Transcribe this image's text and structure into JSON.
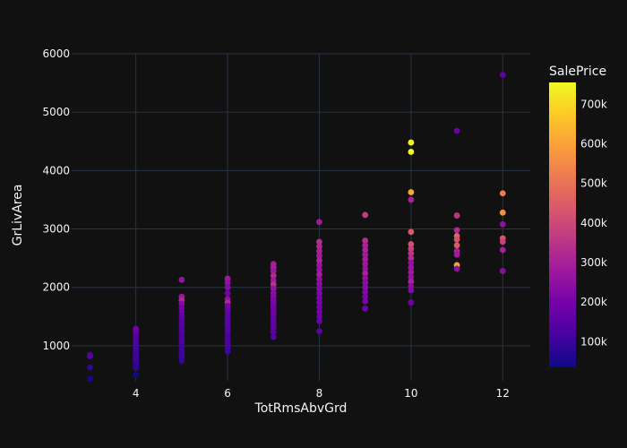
{
  "chart_data": {
    "type": "scatter",
    "title": "",
    "xlabel": "TotRmsAbvGrd",
    "ylabel": "GrLivArea",
    "xlim": [
      2.6,
      12.6
    ],
    "ylim": [
      400,
      6000
    ],
    "x_ticks": [
      4,
      6,
      8,
      10,
      12
    ],
    "x_tick_labels": [
      "4",
      "6",
      "8",
      "10",
      "12"
    ],
    "y_ticks": [
      1000,
      2000,
      3000,
      4000,
      5000,
      6000
    ],
    "y_tick_labels": [
      "1000",
      "2000",
      "3000",
      "4000",
      "5000",
      "6000"
    ],
    "grid": true,
    "colorbar": {
      "title": "SalePrice",
      "range": [
        34900,
        755000
      ],
      "ticks": [
        100000,
        200000,
        300000,
        400000,
        500000,
        600000,
        700000
      ],
      "tick_labels": [
        "100k",
        "200k",
        "300k",
        "400k",
        "500k",
        "600k",
        "700k"
      ],
      "colorscale": [
        "#0d0887",
        "#46039f",
        "#7201a8",
        "#9c179e",
        "#bd3786",
        "#d8576b",
        "#ed7953",
        "#fb9f3a",
        "#fdca26",
        "#f0f921"
      ]
    },
    "points": [
      {
        "x": 3,
        "y": 840,
        "c": 160000
      },
      {
        "x": 3,
        "y": 820,
        "c": 130000
      },
      {
        "x": 3,
        "y": 630,
        "c": 90000
      },
      {
        "x": 3,
        "y": 430,
        "c": 50000
      },
      {
        "x": 4,
        "y": 1290,
        "c": 200000
      },
      {
        "x": 4,
        "y": 1230,
        "c": 180000
      },
      {
        "x": 4,
        "y": 1180,
        "c": 150000
      },
      {
        "x": 4,
        "y": 1120,
        "c": 140000
      },
      {
        "x": 4,
        "y": 1060,
        "c": 120000
      },
      {
        "x": 4,
        "y": 1000,
        "c": 130000
      },
      {
        "x": 4,
        "y": 950,
        "c": 110000
      },
      {
        "x": 4,
        "y": 900,
        "c": 120000
      },
      {
        "x": 4,
        "y": 860,
        "c": 100000
      },
      {
        "x": 4,
        "y": 820,
        "c": 110000
      },
      {
        "x": 4,
        "y": 780,
        "c": 95000
      },
      {
        "x": 4,
        "y": 740,
        "c": 100000
      },
      {
        "x": 4,
        "y": 700,
        "c": 90000
      },
      {
        "x": 4,
        "y": 660,
        "c": 85000
      },
      {
        "x": 4,
        "y": 620,
        "c": 80000
      },
      {
        "x": 4,
        "y": 500,
        "c": 40000
      },
      {
        "x": 5,
        "y": 2130,
        "c": 260000
      },
      {
        "x": 5,
        "y": 1840,
        "c": 270000
      },
      {
        "x": 5,
        "y": 1780,
        "c": 320000
      },
      {
        "x": 5,
        "y": 1720,
        "c": 230000
      },
      {
        "x": 5,
        "y": 1650,
        "c": 200000
      },
      {
        "x": 5,
        "y": 1580,
        "c": 190000
      },
      {
        "x": 5,
        "y": 1520,
        "c": 170000
      },
      {
        "x": 5,
        "y": 1460,
        "c": 160000
      },
      {
        "x": 5,
        "y": 1400,
        "c": 150000
      },
      {
        "x": 5,
        "y": 1340,
        "c": 140000
      },
      {
        "x": 5,
        "y": 1280,
        "c": 130000
      },
      {
        "x": 5,
        "y": 1220,
        "c": 140000
      },
      {
        "x": 5,
        "y": 1160,
        "c": 120000
      },
      {
        "x": 5,
        "y": 1100,
        "c": 130000
      },
      {
        "x": 5,
        "y": 1040,
        "c": 120000
      },
      {
        "x": 5,
        "y": 980,
        "c": 110000
      },
      {
        "x": 5,
        "y": 920,
        "c": 115000
      },
      {
        "x": 5,
        "y": 860,
        "c": 100000
      },
      {
        "x": 5,
        "y": 800,
        "c": 105000
      },
      {
        "x": 5,
        "y": 740,
        "c": 90000
      },
      {
        "x": 6,
        "y": 2150,
        "c": 280000
      },
      {
        "x": 6,
        "y": 2080,
        "c": 250000
      },
      {
        "x": 6,
        "y": 2000,
        "c": 230000
      },
      {
        "x": 6,
        "y": 1900,
        "c": 200000
      },
      {
        "x": 6,
        "y": 1800,
        "c": 250000
      },
      {
        "x": 6,
        "y": 1740,
        "c": 320000
      },
      {
        "x": 6,
        "y": 1680,
        "c": 190000
      },
      {
        "x": 6,
        "y": 1620,
        "c": 180000
      },
      {
        "x": 6,
        "y": 1560,
        "c": 170000
      },
      {
        "x": 6,
        "y": 1500,
        "c": 160000
      },
      {
        "x": 6,
        "y": 1440,
        "c": 150000
      },
      {
        "x": 6,
        "y": 1380,
        "c": 160000
      },
      {
        "x": 6,
        "y": 1320,
        "c": 140000
      },
      {
        "x": 6,
        "y": 1260,
        "c": 150000
      },
      {
        "x": 6,
        "y": 1200,
        "c": 140000
      },
      {
        "x": 6,
        "y": 1140,
        "c": 110000
      },
      {
        "x": 6,
        "y": 1080,
        "c": 130000
      },
      {
        "x": 6,
        "y": 1020,
        "c": 120000
      },
      {
        "x": 6,
        "y": 960,
        "c": 115000
      },
      {
        "x": 6,
        "y": 900,
        "c": 105000
      },
      {
        "x": 7,
        "y": 2400,
        "c": 290000
      },
      {
        "x": 7,
        "y": 2340,
        "c": 300000
      },
      {
        "x": 7,
        "y": 2280,
        "c": 270000
      },
      {
        "x": 7,
        "y": 2200,
        "c": 320000
      },
      {
        "x": 7,
        "y": 2120,
        "c": 280000
      },
      {
        "x": 7,
        "y": 2050,
        "c": 340000
      },
      {
        "x": 7,
        "y": 1980,
        "c": 260000
      },
      {
        "x": 7,
        "y": 1900,
        "c": 240000
      },
      {
        "x": 7,
        "y": 1840,
        "c": 230000
      },
      {
        "x": 7,
        "y": 1780,
        "c": 220000
      },
      {
        "x": 7,
        "y": 1720,
        "c": 210000
      },
      {
        "x": 7,
        "y": 1660,
        "c": 200000
      },
      {
        "x": 7,
        "y": 1600,
        "c": 190000
      },
      {
        "x": 7,
        "y": 1540,
        "c": 185000
      },
      {
        "x": 7,
        "y": 1480,
        "c": 180000
      },
      {
        "x": 7,
        "y": 1420,
        "c": 170000
      },
      {
        "x": 7,
        "y": 1360,
        "c": 165000
      },
      {
        "x": 7,
        "y": 1300,
        "c": 160000
      },
      {
        "x": 7,
        "y": 1240,
        "c": 150000
      },
      {
        "x": 7,
        "y": 1150,
        "c": 140000
      },
      {
        "x": 8,
        "y": 3120,
        "c": 280000
      },
      {
        "x": 8,
        "y": 2780,
        "c": 330000
      },
      {
        "x": 8,
        "y": 2700,
        "c": 320000
      },
      {
        "x": 8,
        "y": 2620,
        "c": 300000
      },
      {
        "x": 8,
        "y": 2540,
        "c": 290000
      },
      {
        "x": 8,
        "y": 2460,
        "c": 310000
      },
      {
        "x": 8,
        "y": 2380,
        "c": 270000
      },
      {
        "x": 8,
        "y": 2300,
        "c": 260000
      },
      {
        "x": 8,
        "y": 2220,
        "c": 300000
      },
      {
        "x": 8,
        "y": 2140,
        "c": 250000
      },
      {
        "x": 8,
        "y": 2060,
        "c": 240000
      },
      {
        "x": 8,
        "y": 1980,
        "c": 230000
      },
      {
        "x": 8,
        "y": 1900,
        "c": 220000
      },
      {
        "x": 8,
        "y": 1820,
        "c": 210000
      },
      {
        "x": 8,
        "y": 1740,
        "c": 200000
      },
      {
        "x": 8,
        "y": 1660,
        "c": 195000
      },
      {
        "x": 8,
        "y": 1580,
        "c": 190000
      },
      {
        "x": 8,
        "y": 1500,
        "c": 180000
      },
      {
        "x": 8,
        "y": 1420,
        "c": 170000
      },
      {
        "x": 8,
        "y": 1250,
        "c": 150000
      },
      {
        "x": 9,
        "y": 3240,
        "c": 370000
      },
      {
        "x": 9,
        "y": 2800,
        "c": 330000
      },
      {
        "x": 9,
        "y": 2720,
        "c": 300000
      },
      {
        "x": 9,
        "y": 2640,
        "c": 310000
      },
      {
        "x": 9,
        "y": 2560,
        "c": 280000
      },
      {
        "x": 9,
        "y": 2480,
        "c": 290000
      },
      {
        "x": 9,
        "y": 2400,
        "c": 270000
      },
      {
        "x": 9,
        "y": 2320,
        "c": 260000
      },
      {
        "x": 9,
        "y": 2240,
        "c": 300000
      },
      {
        "x": 9,
        "y": 2160,
        "c": 250000
      },
      {
        "x": 9,
        "y": 2080,
        "c": 240000
      },
      {
        "x": 9,
        "y": 2000,
        "c": 230000
      },
      {
        "x": 9,
        "y": 1920,
        "c": 220000
      },
      {
        "x": 9,
        "y": 1840,
        "c": 210000
      },
      {
        "x": 9,
        "y": 1760,
        "c": 200000
      },
      {
        "x": 9,
        "y": 1640,
        "c": 190000
      },
      {
        "x": 10,
        "y": 4480,
        "c": 745000
      },
      {
        "x": 10,
        "y": 4320,
        "c": 755000
      },
      {
        "x": 10,
        "y": 3630,
        "c": 610000
      },
      {
        "x": 10,
        "y": 3500,
        "c": 300000
      },
      {
        "x": 10,
        "y": 2950,
        "c": 440000
      },
      {
        "x": 10,
        "y": 2740,
        "c": 420000
      },
      {
        "x": 10,
        "y": 2660,
        "c": 380000
      },
      {
        "x": 10,
        "y": 2580,
        "c": 350000
      },
      {
        "x": 10,
        "y": 2500,
        "c": 330000
      },
      {
        "x": 10,
        "y": 2420,
        "c": 250000
      },
      {
        "x": 10,
        "y": 2340,
        "c": 270000
      },
      {
        "x": 10,
        "y": 2260,
        "c": 280000
      },
      {
        "x": 10,
        "y": 2180,
        "c": 260000
      },
      {
        "x": 10,
        "y": 2100,
        "c": 300000
      },
      {
        "x": 10,
        "y": 2020,
        "c": 240000
      },
      {
        "x": 10,
        "y": 1950,
        "c": 230000
      },
      {
        "x": 10,
        "y": 1740,
        "c": 190000
      },
      {
        "x": 11,
        "y": 4680,
        "c": 185000
      },
      {
        "x": 11,
        "y": 3230,
        "c": 350000
      },
      {
        "x": 11,
        "y": 2980,
        "c": 320000
      },
      {
        "x": 11,
        "y": 2880,
        "c": 460000
      },
      {
        "x": 11,
        "y": 2820,
        "c": 420000
      },
      {
        "x": 11,
        "y": 2720,
        "c": 440000
      },
      {
        "x": 11,
        "y": 2620,
        "c": 300000
      },
      {
        "x": 11,
        "y": 2560,
        "c": 280000
      },
      {
        "x": 11,
        "y": 2380,
        "c": 600000
      },
      {
        "x": 11,
        "y": 2320,
        "c": 250000
      },
      {
        "x": 12,
        "y": 5640,
        "c": 160000
      },
      {
        "x": 12,
        "y": 3610,
        "c": 520000
      },
      {
        "x": 12,
        "y": 3280,
        "c": 560000
      },
      {
        "x": 12,
        "y": 3080,
        "c": 250000
      },
      {
        "x": 12,
        "y": 2840,
        "c": 430000
      },
      {
        "x": 12,
        "y": 2780,
        "c": 380000
      },
      {
        "x": 12,
        "y": 2640,
        "c": 300000
      },
      {
        "x": 12,
        "y": 2280,
        "c": 240000
      }
    ]
  }
}
